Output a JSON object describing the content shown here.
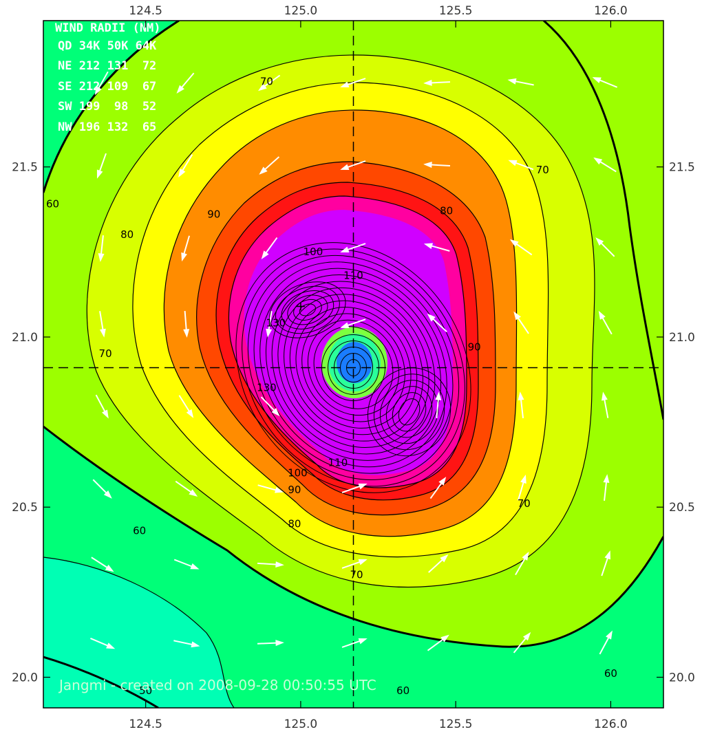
{
  "map": {
    "x_ticks": [
      "124.5",
      "125.0",
      "125.5",
      "126.0"
    ],
    "x_tick_values": [
      124.5,
      125.0,
      125.5,
      126.0
    ],
    "y_ticks": [
      "21.5",
      "21.0",
      "20.5",
      "20.0"
    ],
    "y_tick_values": [
      21.5,
      21.0,
      20.5,
      20.0
    ],
    "lon_range": [
      124.17,
      126.17
    ],
    "lat_range": [
      19.91,
      21.93
    ],
    "storm_center": {
      "lon": 125.17,
      "lat": 20.91
    },
    "secondary_max": {
      "lon": 125.0,
      "lat": 21.09
    },
    "contour_labels": [
      {
        "text": "60",
        "lon": 124.2,
        "lat": 21.39
      },
      {
        "text": "70",
        "lon": 124.89,
        "lat": 21.75
      },
      {
        "text": "70",
        "lon": 125.78,
        "lat": 21.49
      },
      {
        "text": "80",
        "lon": 124.44,
        "lat": 21.3
      },
      {
        "text": "80",
        "lon": 125.47,
        "lat": 21.37
      },
      {
        "text": "90",
        "lon": 124.72,
        "lat": 21.36
      },
      {
        "text": "100",
        "lon": 125.04,
        "lat": 21.25
      },
      {
        "text": "110",
        "lon": 125.17,
        "lat": 21.18
      },
      {
        "text": "130",
        "lon": 124.92,
        "lat": 21.04
      },
      {
        "text": "130",
        "lon": 124.89,
        "lat": 20.85
      },
      {
        "text": "90",
        "lon": 125.56,
        "lat": 20.97
      },
      {
        "text": "70",
        "lon": 124.37,
        "lat": 20.95
      },
      {
        "text": "110",
        "lon": 125.12,
        "lat": 20.63
      },
      {
        "text": "100",
        "lon": 124.99,
        "lat": 20.6
      },
      {
        "text": "90",
        "lon": 124.98,
        "lat": 20.55
      },
      {
        "text": "80",
        "lon": 124.98,
        "lat": 20.45
      },
      {
        "text": "70",
        "lon": 125.72,
        "lat": 20.51
      },
      {
        "text": "70",
        "lon": 125.18,
        "lat": 20.3
      },
      {
        "text": "60",
        "lon": 124.48,
        "lat": 20.43
      },
      {
        "text": "60",
        "lon": 126.0,
        "lat": 20.01
      },
      {
        "text": "60",
        "lon": 125.33,
        "lat": 19.96
      },
      {
        "text": "50",
        "lon": 124.5,
        "lat": 19.96
      }
    ],
    "legend": {
      "title": "WIND RADII (NM)",
      "header": "QD 34K 50K 64K",
      "rows": [
        "NE 212 131  72",
        "SE 212 109  67",
        "SW 199  98  52",
        "NW 196 132  65"
      ]
    },
    "credit": "Jangmi - created on 2008-09-28 00:50:55 UTC",
    "colors": {
      "below50": "#00ffb4",
      "c50_60": "#00ff78",
      "c60_70": "#9cff00",
      "c70_80": "#d8ff00",
      "c80_90": "#ffff00",
      "c90_100": "#ff8c00",
      "c100_110": "#ff4800",
      "c110_120": "#ff1414",
      "c120_130": "#ff00a0",
      "c130_plus": "#d000ff",
      "eye": "#1a7cff",
      "arrows": "#ffffff",
      "contours": "#000000"
    }
  }
}
